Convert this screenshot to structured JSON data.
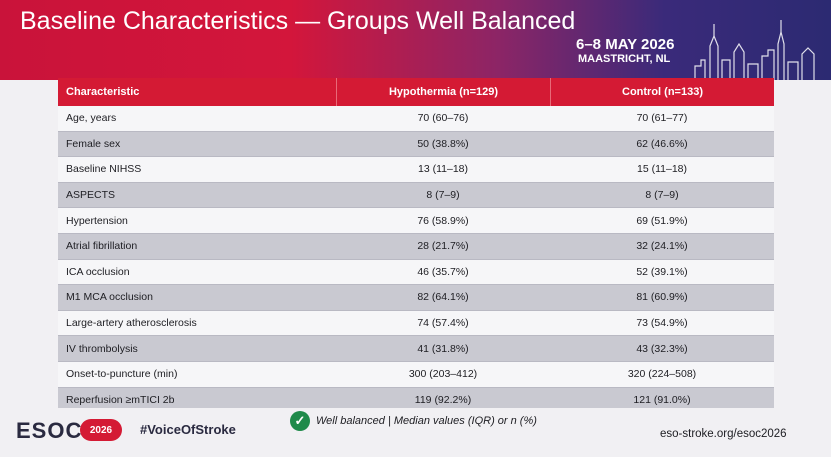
{
  "slide": {
    "title": "Baseline Characteristics — Groups Well Balanced",
    "event_date": "6–8 MAY 2026",
    "event_city": "MAASTRICHT, NL"
  },
  "table": {
    "headers": [
      "Characteristic",
      "Hypothermia (n=129)",
      "Control (n=133)"
    ],
    "rows": [
      [
        "Age, years",
        "70 (60–76)",
        "70 (61–77)"
      ],
      [
        "Female sex",
        "50 (38.8%)",
        "62 (46.6%)"
      ],
      [
        "Baseline NIHSS",
        "13 (11–18)",
        "15 (11–18)"
      ],
      [
        "ASPECTS",
        "8 (7–9)",
        "8 (7–9)"
      ],
      [
        "Hypertension",
        "76 (58.9%)",
        "69 (51.9%)"
      ],
      [
        "Atrial fibrillation",
        "28 (21.7%)",
        "32 (24.1%)"
      ],
      [
        "ICA occlusion",
        "46 (35.7%)",
        "52 (39.1%)"
      ],
      [
        "M1 MCA occlusion",
        "82 (64.1%)",
        "81 (60.9%)"
      ],
      [
        "Large-artery atherosclerosis",
        "74 (57.4%)",
        "73 (54.9%)"
      ],
      [
        "IV thrombolysis",
        "41 (31.8%)",
        "43 (32.3%)"
      ],
      [
        "Onset-to-puncture (min)",
        "300 (203–412)",
        "320 (224–508)"
      ],
      [
        "Reperfusion ≥mTICI 2b",
        "119 (92.2%)",
        "121 (91.0%)"
      ]
    ]
  },
  "footer": {
    "logo_text": "ESOC",
    "logo_badge": "2026",
    "hashtag": "#VoiceOfStroke",
    "legend": "Well balanced  |  Median values (IQR) or n (%)",
    "website": "eso-stroke.org/esoc2026",
    "check_icon": "check-circle-icon"
  },
  "colors": {
    "header_red": "#d41a34",
    "header_purple": "#2c2a72",
    "check_green": "#1f8a4a",
    "row_shade": "#c9c9d1"
  }
}
